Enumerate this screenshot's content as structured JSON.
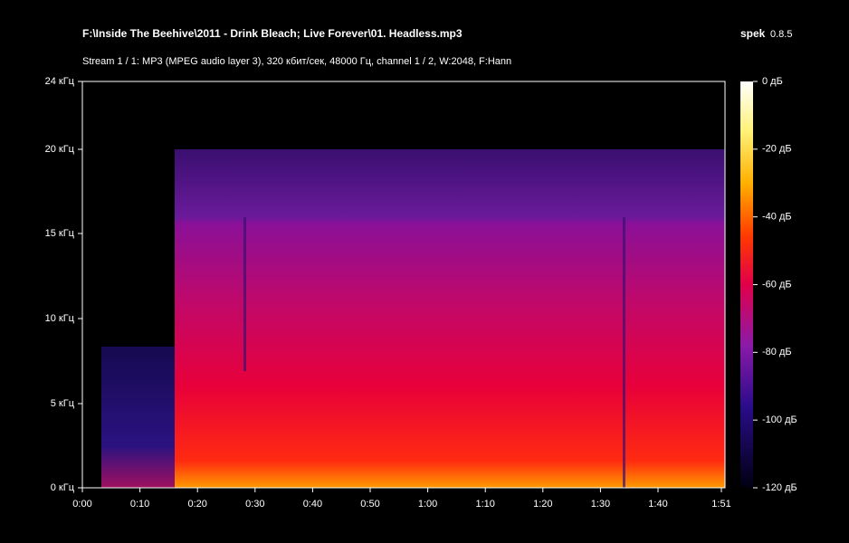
{
  "header": {
    "file": "F:\\Inside The Beehive\\2011 - Drink Bleach; Live Forever\\01. Headless.mp3",
    "app": "spek",
    "version": "0.8.5",
    "stream": "Stream 1 / 1: MP3 (MPEG audio layer 3), 320 кбит/сек, 48000 Гц, channel 1 / 2, W:2048, F:Hann"
  },
  "frequency_axis": [
    "24 кГц",
    "20 кГц",
    "15 кГц",
    "10 кГц",
    "5 кГц",
    "0 кГц"
  ],
  "time_axis": [
    "0:00",
    "0:10",
    "0:20",
    "0:30",
    "0:40",
    "0:50",
    "1:00",
    "1:10",
    "1:20",
    "1:30",
    "1:40",
    "1:51"
  ],
  "level_scale": [
    "0 дБ",
    "-20 дБ",
    "-40 дБ",
    "-60 дБ",
    "-80 дБ",
    "-100 дБ",
    "-120 дБ"
  ]
}
